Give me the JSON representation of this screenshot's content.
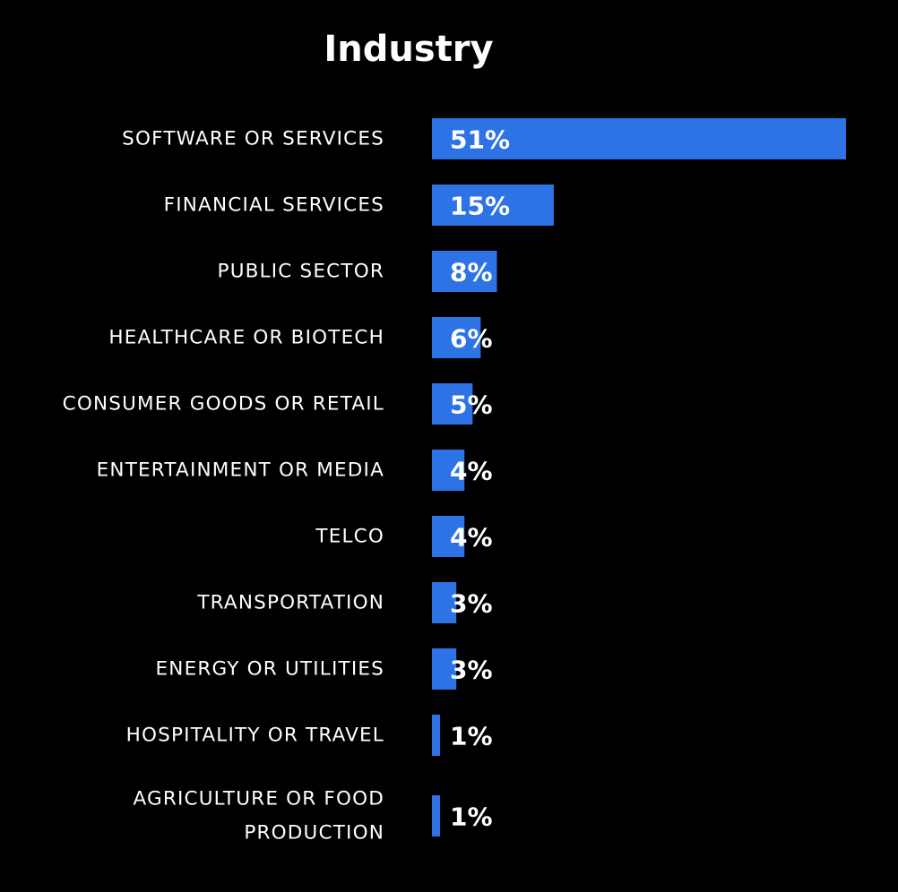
{
  "chart_data": {
    "type": "bar",
    "orientation": "horizontal",
    "title": "Industry",
    "categories": [
      [
        "SOFTWARE OR SERVICES"
      ],
      [
        "FINANCIAL SERVICES"
      ],
      [
        "PUBLIC SECTOR"
      ],
      [
        "HEALTHCARE OR BIOTECH"
      ],
      [
        "CONSUMER GOODS OR RETAIL"
      ],
      [
        "ENTERTAINMENT OR MEDIA"
      ],
      [
        "TELCO"
      ],
      [
        "TRANSPORTATION"
      ],
      [
        "ENERGY OR UTILITIES"
      ],
      [
        "HOSPITALITY OR TRAVEL"
      ],
      [
        "AGRICULTURE OR FOOD",
        "PRODUCTION"
      ]
    ],
    "values": [
      51,
      15,
      8,
      6,
      5,
      4,
      4,
      3,
      3,
      1,
      1
    ],
    "value_labels": [
      "51%",
      "15%",
      "8%",
      "6%",
      "5%",
      "4%",
      "4%",
      "3%",
      "3%",
      "1%",
      "1%"
    ],
    "xlim": [
      0,
      51
    ],
    "xlabel": "",
    "ylabel": "",
    "grid": false,
    "legend": "none",
    "bar_color": "#2e73e6",
    "background_color": "#000000",
    "text_color": "#ffffff"
  }
}
